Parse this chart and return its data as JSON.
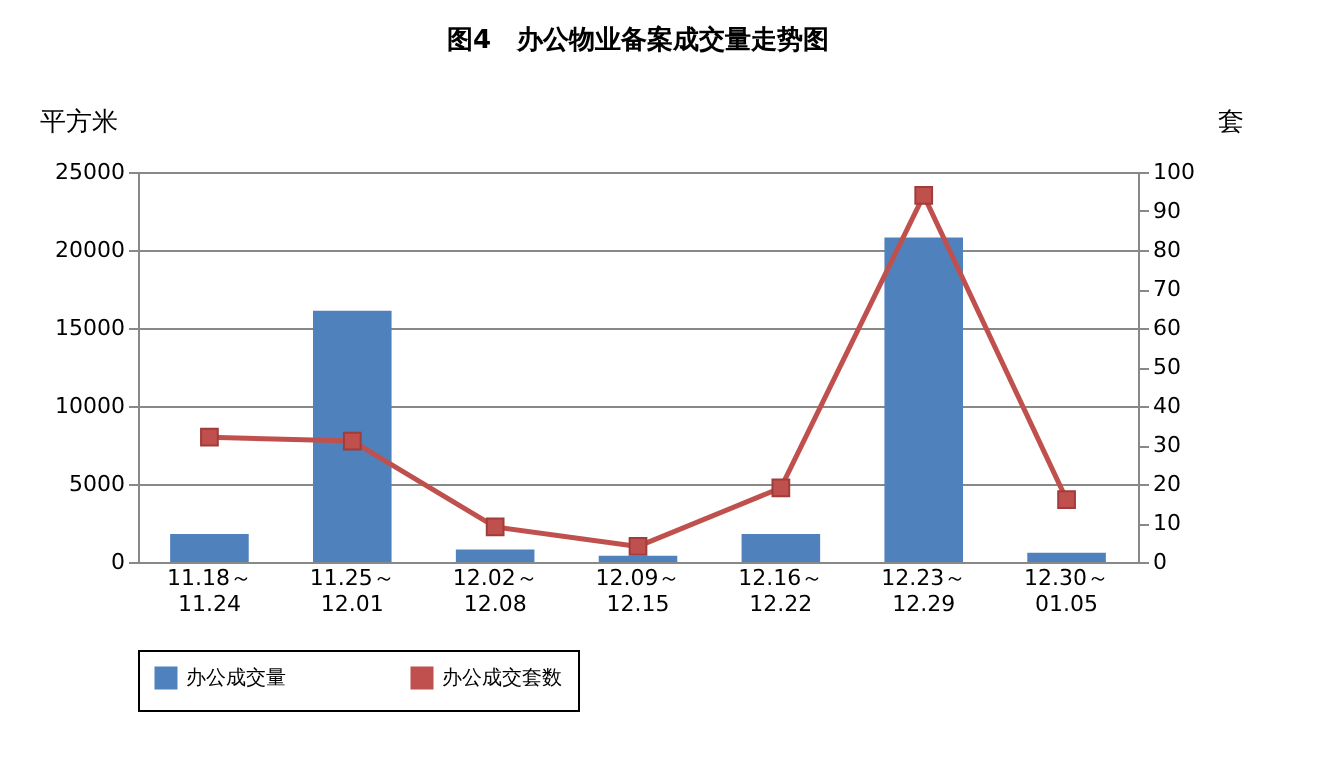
{
  "chart_data": {
    "type": "bar",
    "title": "图4　办公物业备案成交量走势图",
    "ylabel": "平方米",
    "y2label": "套",
    "categories": [
      "11.18～\n11.24",
      "11.25～\n12.01",
      "12.02～\n12.08",
      "12.09～\n12.15",
      "12.16～\n12.22",
      "12.23～\n12.29",
      "12.30～\n01.05"
    ],
    "series": [
      {
        "name": "办公成交量",
        "color": "#4f81bd",
        "values": [
          1800,
          16100,
          800,
          400,
          1800,
          20800,
          600
        ]
      },
      {
        "name": "办公成交套数",
        "color": "#c0504d",
        "type": "line",
        "axis": "y2",
        "marker": "square",
        "values": [
          32,
          31,
          9,
          4,
          19,
          94,
          16
        ]
      }
    ],
    "ylim": [
      0,
      25000
    ],
    "yticks": [
      0,
      5000,
      10000,
      15000,
      20000,
      25000
    ],
    "y2lim": [
      0,
      100
    ],
    "y2ticks": [
      0,
      10,
      20,
      30,
      40,
      50,
      60,
      70,
      80,
      90,
      100
    ],
    "grid": "y",
    "legend": "bottom"
  }
}
